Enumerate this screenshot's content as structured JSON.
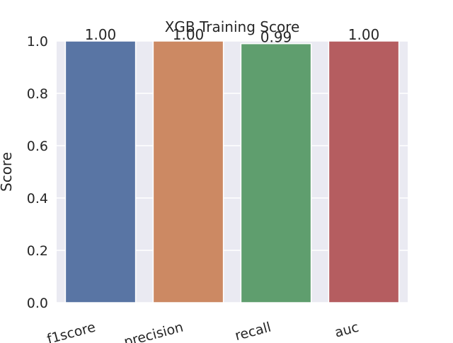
{
  "chart_data": {
    "type": "bar",
    "title": "XGB Training Score",
    "xlabel": "",
    "ylabel": "Score",
    "categories": [
      "f1score",
      "precision",
      "recall",
      "auc"
    ],
    "values": [
      1.0,
      1.0,
      0.99,
      1.0
    ],
    "data_labels": [
      "1.00",
      "1.00",
      "0.99",
      "1.00"
    ],
    "ylim": [
      0,
      1.0
    ],
    "yticks": [
      0.0,
      0.2,
      0.4,
      0.6,
      0.8,
      1.0
    ],
    "ytick_labels": [
      "0.0",
      "0.2",
      "0.4",
      "0.6",
      "0.8",
      "1.0"
    ],
    "grid": true,
    "style": "seaborn-darkgrid",
    "colors": {
      "background": "#eaeaf2",
      "grid": "#ffffff",
      "bars": [
        "#5975a4",
        "#cc8963",
        "#5f9e6e",
        "#b55d60"
      ]
    }
  }
}
